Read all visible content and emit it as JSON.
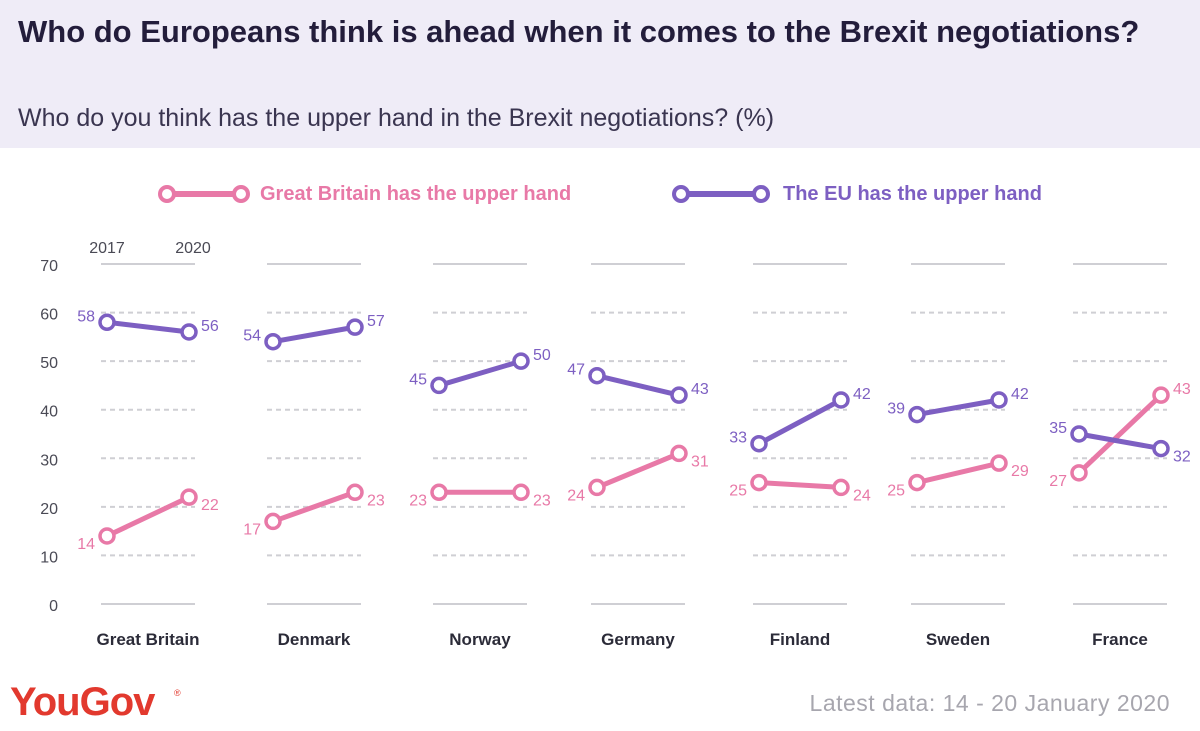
{
  "header": {
    "title": "Who do Europeans think is ahead when it comes to the Brexit negotiations?",
    "subtitle": "Who do you think has the upper hand in the Brexit negotiations? (%)"
  },
  "legend": {
    "gb_label": "Great Britain has the upper hand",
    "eu_label": "The EU has the upper hand"
  },
  "footer": {
    "logo": "YouGov",
    "logo_mark": "®",
    "date": "Latest data: 14 - 20 January 2020"
  },
  "colors": {
    "gb": "#e879a7",
    "eu": "#7d5fc2",
    "grid": "#cfcfd4",
    "axis_text": "#4a4a55"
  },
  "chart_data": {
    "type": "line",
    "title": "Who do Europeans think is ahead when it comes to the Brexit negotiations?",
    "subtitle": "Who do you think has the upper hand in the Brexit negotiations? (%)",
    "x": [
      "2017",
      "2020"
    ],
    "ylim": [
      0,
      70
    ],
    "yticks": [
      0,
      10,
      20,
      30,
      40,
      50,
      60,
      70
    ],
    "legend_position": "top",
    "panels": [
      {
        "country": "Great Britain",
        "series": [
          {
            "name": "Great Britain has the upper hand",
            "values": [
              14,
              22
            ]
          },
          {
            "name": "The EU has the upper hand",
            "values": [
              58,
              56
            ]
          }
        ]
      },
      {
        "country": "Denmark",
        "series": [
          {
            "name": "Great Britain has the upper hand",
            "values": [
              17,
              23
            ]
          },
          {
            "name": "The EU has the upper hand",
            "values": [
              54,
              57
            ]
          }
        ]
      },
      {
        "country": "Norway",
        "series": [
          {
            "name": "Great Britain has the upper hand",
            "values": [
              23,
              23
            ]
          },
          {
            "name": "The EU has the upper hand",
            "values": [
              45,
              50
            ]
          }
        ]
      },
      {
        "country": "Germany",
        "series": [
          {
            "name": "Great Britain has the upper hand",
            "values": [
              24,
              31
            ]
          },
          {
            "name": "The EU has the upper hand",
            "values": [
              47,
              43
            ]
          }
        ]
      },
      {
        "country": "Finland",
        "series": [
          {
            "name": "Great Britain has the upper hand",
            "values": [
              25,
              24
            ]
          },
          {
            "name": "The EU has the upper hand",
            "values": [
              33,
              42
            ]
          }
        ]
      },
      {
        "country": "Sweden",
        "series": [
          {
            "name": "Great Britain has the upper hand",
            "values": [
              25,
              29
            ]
          },
          {
            "name": "The EU has the upper hand",
            "values": [
              39,
              42
            ]
          }
        ]
      },
      {
        "country": "France",
        "series": [
          {
            "name": "Great Britain has the upper hand",
            "values": [
              27,
              43
            ]
          },
          {
            "name": "The EU has the upper hand",
            "values": [
              35,
              32
            ]
          }
        ]
      }
    ]
  }
}
